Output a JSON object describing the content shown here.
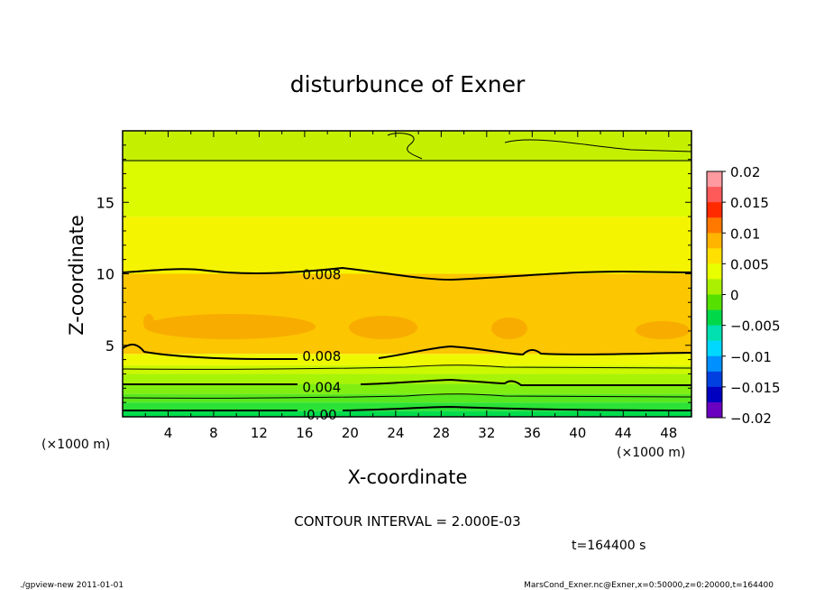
{
  "chart_data": {
    "type": "contour",
    "title": "disturbunce of Exner",
    "xlabel": "X-coordinate",
    "ylabel": "Z-coordinate",
    "x_unit": "(×1000 m)",
    "y_unit": "(×1000 m)",
    "xlim": [
      0,
      50
    ],
    "ylim": [
      0,
      20
    ],
    "x_ticks": [
      4,
      8,
      12,
      16,
      20,
      24,
      28,
      32,
      36,
      40,
      44,
      48
    ],
    "y_ticks": [
      5,
      10,
      15
    ],
    "contour_interval_text": "CONTOUR INTERVAL = 2.000E-03",
    "time_text": "t=164400 s",
    "contour_labels": [
      {
        "text": "0.008",
        "x": 17.5,
        "z": 10.0
      },
      {
        "text": "0.008",
        "x": 17.5,
        "z": 4.3
      },
      {
        "text": "0.004",
        "x": 17.5,
        "z": 2.1
      },
      {
        "text": "0.00",
        "x": 17.5,
        "z": 0.2
      }
    ],
    "colorbar": {
      "ticks": [
        "0.02",
        "0.015",
        "0.01",
        "0.005",
        "0",
        "−0.005",
        "−0.01",
        "−0.015",
        "−0.02"
      ],
      "colors": [
        "#ff9aa0",
        "#ff5a5a",
        "#ff2a00",
        "#ff7800",
        "#ffb400",
        "#ffe000",
        "#e8ff00",
        "#aaf000",
        "#55e000",
        "#00d84a",
        "#00e0b0",
        "#00d8ff",
        "#0090ff",
        "#0040e0",
        "#0000c0",
        "#6a00c0"
      ]
    },
    "bands": [
      {
        "z0": 0.0,
        "z1": 0.4,
        "color": "#00dc4c"
      },
      {
        "z0": 0.4,
        "z1": 1.0,
        "color": "#2be236"
      },
      {
        "z0": 1.0,
        "z1": 1.6,
        "color": "#58e81e"
      },
      {
        "z0": 1.6,
        "z1": 2.3,
        "color": "#80ee10"
      },
      {
        "z0": 2.3,
        "z1": 3.0,
        "color": "#a8f406"
      },
      {
        "z0": 3.0,
        "z1": 3.6,
        "color": "#ccf800"
      },
      {
        "z0": 3.6,
        "z1": 4.4,
        "color": "#eef800"
      },
      {
        "z0": 4.4,
        "z1": 10.0,
        "color": "#fcc600"
      },
      {
        "z0": 10.0,
        "z1": 14.0,
        "color": "#f5f400"
      },
      {
        "z0": 14.0,
        "z1": 17.8,
        "color": "#dcfa00"
      },
      {
        "z0": 17.8,
        "z1": 20.0,
        "color": "#c4f000"
      }
    ]
  },
  "footer": {
    "left": "./gpview-new   2011-01-01",
    "right": "MarsCond_Exner.nc@Exner,x=0:50000,z=0:20000,t=164400"
  }
}
